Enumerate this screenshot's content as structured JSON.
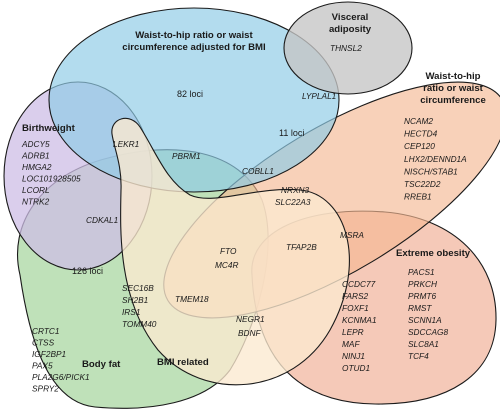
{
  "sets": {
    "waist_bmi": {
      "title_lines": [
        "Waist-to-hip ratio or waist",
        "circumference adjusted for BMI"
      ],
      "loci": "82 loci",
      "color": "#8fcbe6"
    },
    "visceral": {
      "title_lines": [
        "Visceral",
        "adiposity"
      ],
      "genes": [
        "THNSL2"
      ],
      "color": "#c5c5c5"
    },
    "waist": {
      "title_lines": [
        "Waist-to-hip",
        "ratio or waist",
        "circumference"
      ],
      "loci": "11 loci",
      "genes": [
        "NCAM2",
        "HECTD4",
        "CEP120",
        "LHX2/DENND1A",
        "NISCH/STAB1",
        "TSC22D2",
        "RREB1"
      ],
      "color": "#f4b993"
    },
    "birthweight": {
      "title_lines": [
        "Birthweight"
      ],
      "genes": [
        "ADCY5",
        "ADRB1",
        "HMGA2",
        "LOC101928505",
        "LCORL",
        "NTRK2"
      ],
      "color": "#cdbde6"
    },
    "body_fat": {
      "title_lines": [
        "Body fat"
      ],
      "loci": "126 loci",
      "genes": [
        "CRTC1",
        "CTSS",
        "IGF2BP1",
        "PAX5",
        "PLA2G6/PICK1",
        "SPRY2"
      ],
      "color": "#a9d7a2"
    },
    "bmi": {
      "title_lines": [
        "BMI related"
      ],
      "genes": [
        "SEC16B",
        "SH2B1",
        "IRS1",
        "TOMM40"
      ],
      "color": "#fbe9cf"
    },
    "obesity": {
      "title_lines": [
        "Extreme obesity"
      ],
      "genes_left": [
        "CCDC77",
        "FARS2",
        "FOXF1",
        "KCNMA1",
        "LEPR",
        "MAF",
        "NINJ1",
        "OTUD1"
      ],
      "genes_right": [
        "PACS1",
        "PRKCH",
        "PRMT6",
        "RMST",
        "SCNN1A",
        "SDCCAG8",
        "SLC8A1",
        "TCF4"
      ],
      "color": "#f1b49d"
    }
  },
  "overlap_genes": {
    "lyplal1": "LYPLAL1",
    "lekr1": "LEKR1",
    "pbrm1": "PBRM1",
    "cobll1": "COBLL1",
    "cdkal1": "CDKAL1",
    "nrxn3": "NRXN3",
    "slc22a3": "SLC22A3",
    "msra": "MSRA",
    "fto": "FTO",
    "mc4r": "MC4R",
    "tfap2b": "TFAP2B",
    "tmem18": "TMEM18",
    "negr1": "NEGR1",
    "bdnf": "BDNF"
  }
}
